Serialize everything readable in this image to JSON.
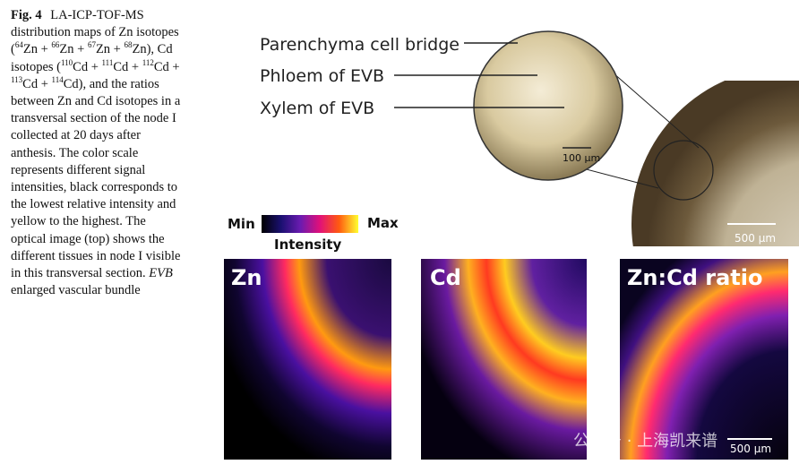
{
  "caption": {
    "label": "Fig. 4",
    "segments": [
      {
        "text": "LA-ICP-TOF-MS distribution maps of Zn isotopes ("
      },
      {
        "sup": "64"
      },
      {
        "text": "Zn + "
      },
      {
        "sup": "66"
      },
      {
        "text": "Zn + "
      },
      {
        "sup": "67"
      },
      {
        "text": "Zn + "
      },
      {
        "sup": "68"
      },
      {
        "text": "Zn), Cd isotopes ("
      },
      {
        "sup": "110"
      },
      {
        "text": "Cd + "
      },
      {
        "sup": "111"
      },
      {
        "text": "Cd + "
      },
      {
        "sup": "112"
      },
      {
        "text": "Cd + "
      },
      {
        "sup": "113"
      },
      {
        "text": "Cd + "
      },
      {
        "sup": "114"
      },
      {
        "text": "Cd), and the ratios between Zn and Cd isotopes in a transversal section of the node I collected at 20 days after anthesis. The color scale represents different signal intensities, black corresponds to the lowest relative intensity and yellow to the highest. The optical image (top) shows the different tissues in node I visible in this transversal section. "
      },
      {
        "italic": "EVB"
      },
      {
        "text": " enlarged vascular bundle"
      }
    ]
  },
  "optical": {
    "labels": [
      "Parenchyma cell bridge",
      "Phloem of EVB",
      "Xylem of EVB"
    ],
    "scale_zoom": "100 µm",
    "scale_section": "500 µm"
  },
  "colorbar": {
    "min": "Min",
    "max": "Max",
    "title": "Intensity"
  },
  "panels": [
    {
      "title": "Zn"
    },
    {
      "title": "Cd"
    },
    {
      "title": "Zn:Cd ratio",
      "scale": "500 µm"
    }
  ],
  "watermark": "公众号 · 上海凯来谱"
}
